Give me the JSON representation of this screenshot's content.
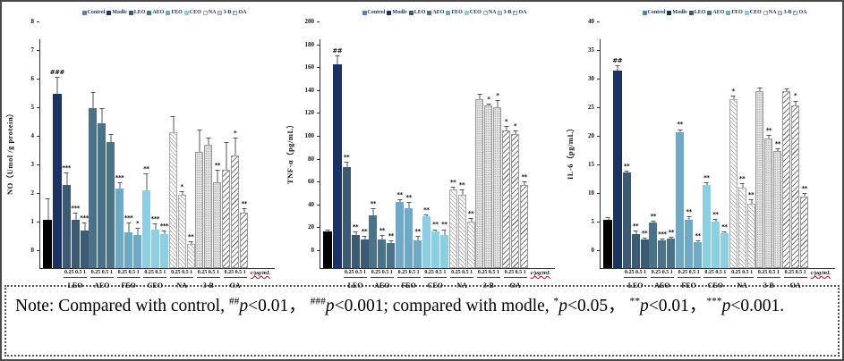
{
  "colors": {
    "Control": "#000000",
    "Modle": "#1b3264",
    "LEO": "#3c5a74",
    "AEO": "#4a7389",
    "FEO": "#6fa9c8",
    "CEO": "#8bd0e2",
    "NA": "pattern-na",
    "3-B": "pattern-dots",
    "OA": "pattern-oa",
    "control_legend_swatch": "#4f81bd",
    "legend_text": "#16305e",
    "axis": "#333333"
  },
  "chart_data": [
    {
      "type": "bar",
      "ylabel": "NO（Umol /g protein）",
      "xlabel": "c/μg/mL",
      "ylim": [
        0,
        8
      ],
      "ytick_step": 1,
      "legend": [
        "Control",
        "Modle",
        "LEO",
        "AEO",
        "FEO",
        "CEO",
        "NA",
        "3-B",
        "OA"
      ],
      "doses": [
        "0.25",
        "0.5",
        "1"
      ],
      "groups": [
        {
          "name": "Control",
          "single": true,
          "bars": [
            {
              "value": 1.7,
              "err": 0.75,
              "sig": ""
            }
          ]
        },
        {
          "name": "Modle",
          "single": true,
          "bars": [
            {
              "value": 6.1,
              "err": 0.6,
              "sig": "###"
            }
          ]
        },
        {
          "name": "LEO",
          "bars": [
            {
              "dose": "0.25",
              "value": 2.9,
              "err": 0.45,
              "sig": "***"
            },
            {
              "dose": "0.5",
              "value": 1.7,
              "err": 0.25,
              "sig": "***"
            },
            {
              "dose": "1",
              "value": 1.3,
              "err": 0.3,
              "sig": "***"
            }
          ]
        },
        {
          "name": "AEO",
          "bars": [
            {
              "dose": "0.25",
              "value": 5.6,
              "err": 0.55,
              "sig": ""
            },
            {
              "dose": "0.5",
              "value": 5.05,
              "err": 0.55,
              "sig": ""
            },
            {
              "dose": "1",
              "value": 4.4,
              "err": 0.3,
              "sig": ""
            }
          ]
        },
        {
          "name": "FEO",
          "bars": [
            {
              "dose": "0.25",
              "value": 2.78,
              "err": 0.22,
              "sig": "***"
            },
            {
              "dose": "0.5",
              "value": 1.25,
              "err": 0.35,
              "sig": "***"
            },
            {
              "dose": "1",
              "value": 1.15,
              "err": 0.25,
              "sig": "*"
            }
          ]
        },
        {
          "name": "CEO",
          "bars": [
            {
              "dose": "0.25",
              "value": 2.72,
              "err": 0.6,
              "sig": "**"
            },
            {
              "dose": "0.5",
              "value": 1.35,
              "err": 0.2,
              "sig": "***"
            },
            {
              "dose": "1",
              "value": 1.2,
              "err": 0.12,
              "sig": "***"
            }
          ]
        },
        {
          "name": "NA",
          "bars": [
            {
              "dose": "0.25",
              "value": 4.75,
              "err": 0.55,
              "sig": ""
            },
            {
              "dose": "0.5",
              "value": 2.55,
              "err": 0.15,
              "sig": "*"
            },
            {
              "dose": "1",
              "value": 0.85,
              "err": 0.1,
              "sig": "**"
            }
          ]
        },
        {
          "name": "3-B",
          "bars": [
            {
              "dose": "0.25",
              "value": 4.05,
              "err": 0.8,
              "sig": ""
            },
            {
              "dose": "0.5",
              "value": 4.3,
              "err": 0.25,
              "sig": ""
            },
            {
              "dose": "1",
              "value": 3.0,
              "err": 0.45,
              "sig": "**"
            }
          ]
        },
        {
          "name": "OA",
          "bars": [
            {
              "dose": "0.25",
              "value": 3.45,
              "err": 0.95,
              "sig": ""
            },
            {
              "dose": "0.5",
              "value": 3.95,
              "err": 0.6,
              "sig": "*"
            },
            {
              "dose": "1",
              "value": 1.95,
              "err": 0.15,
              "sig": "**"
            }
          ]
        }
      ]
    },
    {
      "type": "bar",
      "ylabel": "TNF-α（pg/mL）",
      "xlabel": "c/μg/mL",
      "ylim": [
        0,
        200
      ],
      "ytick_step": 20,
      "legend": [
        "Control",
        "Modle",
        "LEO",
        "AEO",
        "FEO",
        "CEO",
        "NA",
        "3-B",
        "OA"
      ],
      "doses": [
        "0.25",
        "0.5",
        "1"
      ],
      "groups": [
        {
          "name": "Control",
          "single": true,
          "bars": [
            {
              "value": 32,
              "err": 2,
              "sig": ""
            }
          ]
        },
        {
          "name": "Modle",
          "single": true,
          "bars": [
            {
              "value": 178,
              "err": 8,
              "sig": "##"
            }
          ]
        },
        {
          "name": "LEO",
          "bars": [
            {
              "dose": "0.25",
              "value": 88,
              "err": 5,
              "sig": "**"
            },
            {
              "dose": "0.5",
              "value": 29,
              "err": 3,
              "sig": "**"
            },
            {
              "dose": "1",
              "value": 25,
              "err": 3,
              "sig": "**"
            }
          ]
        },
        {
          "name": "AEO",
          "bars": [
            {
              "dose": "0.25",
              "value": 46,
              "err": 6,
              "sig": "**"
            },
            {
              "dose": "0.5",
              "value": 25,
              "err": 4,
              "sig": "**"
            },
            {
              "dose": "1",
              "value": 22,
              "err": 2,
              "sig": "**"
            }
          ]
        },
        {
          "name": "FEO",
          "bars": [
            {
              "dose": "0.25",
              "value": 58,
              "err": 2,
              "sig": "**"
            },
            {
              "dose": "0.5",
              "value": 52,
              "err": 6,
              "sig": "**"
            },
            {
              "dose": "1",
              "value": 24,
              "err": 4,
              "sig": "**"
            }
          ]
        },
        {
          "name": "CEO",
          "bars": [
            {
              "dose": "0.25",
              "value": 45,
              "err": 2,
              "sig": "**"
            },
            {
              "dose": "0.5",
              "value": 32,
              "err": 2,
              "sig": "**"
            },
            {
              "dose": "1",
              "value": 29,
              "err": 5,
              "sig": "**"
            }
          ]
        },
        {
          "name": "NA",
          "bars": [
            {
              "dose": "0.25",
              "value": 69,
              "err": 2,
              "sig": "**"
            },
            {
              "dose": "0.5",
              "value": 64,
              "err": 5,
              "sig": "**"
            },
            {
              "dose": "1",
              "value": 41,
              "err": 3,
              "sig": "**"
            }
          ]
        },
        {
          "name": "3-B",
          "bars": [
            {
              "dose": "0.25",
              "value": 148,
              "err": 4,
              "sig": ""
            },
            {
              "dose": "0.5",
              "value": 142,
              "err": 2,
              "sig": "*"
            },
            {
              "dose": "1",
              "value": 141,
              "err": 6,
              "sig": "*"
            }
          ]
        },
        {
          "name": "OA",
          "bars": [
            {
              "dose": "0.25",
              "value": 120,
              "err": 4,
              "sig": "*"
            },
            {
              "dose": "0.5",
              "value": 117,
              "err": 3,
              "sig": "*"
            },
            {
              "dose": "1",
              "value": 73,
              "err": 3,
              "sig": "**"
            }
          ]
        }
      ]
    },
    {
      "type": "bar",
      "ylabel": "IL-6（pg/mL）",
      "xlabel": "c/μg/mL",
      "ylim": [
        0,
        40
      ],
      "ytick_step": 5,
      "legend": [
        "Control",
        "Modle",
        "LEO",
        "AEO",
        "FEO",
        "CEO",
        "NA",
        "3-B",
        "OA"
      ],
      "doses": [
        "0.25",
        "0.5",
        "1"
      ],
      "groups": [
        {
          "name": "Control",
          "single": true,
          "bars": [
            {
              "value": 8.5,
              "err": 0.4,
              "sig": ""
            }
          ]
        },
        {
          "name": "Modle",
          "single": true,
          "bars": [
            {
              "value": 34.5,
              "err": 1,
              "sig": "##"
            }
          ]
        },
        {
          "name": "LEO",
          "bars": [
            {
              "dose": "0.25",
              "value": 16.7,
              "err": 0.4,
              "sig": "**"
            },
            {
              "dose": "0.5",
              "value": 6.0,
              "err": 0.5,
              "sig": "**"
            },
            {
              "dose": "1",
              "value": 5.0,
              "err": 0.3,
              "sig": "**"
            }
          ]
        },
        {
          "name": "AEO",
          "bars": [
            {
              "dose": "0.25",
              "value": 8.0,
              "err": 0.3,
              "sig": "**"
            },
            {
              "dose": "0.5",
              "value": 4.9,
              "err": 0.3,
              "sig": "***"
            },
            {
              "dose": "1",
              "value": 5.1,
              "err": 0.4,
              "sig": "**"
            }
          ]
        },
        {
          "name": "FEO",
          "bars": [
            {
              "dose": "0.25",
              "value": 23.8,
              "err": 0.5,
              "sig": "**"
            },
            {
              "dose": "0.5",
              "value": 8.5,
              "err": 0.5,
              "sig": "**"
            },
            {
              "dose": "1",
              "value": 4.5,
              "err": 0.4,
              "sig": "**"
            }
          ]
        },
        {
          "name": "CEO",
          "bars": [
            {
              "dose": "0.25",
              "value": 14.5,
              "err": 0.5,
              "sig": "**"
            },
            {
              "dose": "0.5",
              "value": 8.2,
              "err": 0.4,
              "sig": "**"
            },
            {
              "dose": "1",
              "value": 6.1,
              "err": 0.3,
              "sig": "**"
            }
          ]
        },
        {
          "name": "NA",
          "bars": [
            {
              "dose": "0.25",
              "value": 29.5,
              "err": 0.6,
              "sig": "*"
            },
            {
              "dose": "0.5",
              "value": 14.0,
              "err": 0.8,
              "sig": "**"
            },
            {
              "dose": "1",
              "value": 11.3,
              "err": 0.7,
              "sig": "**"
            }
          ]
        },
        {
          "name": "3-B",
          "bars": [
            {
              "dose": "0.25",
              "value": 31.0,
              "err": 0.5,
              "sig": ""
            },
            {
              "dose": "0.5",
              "value": 22.7,
              "err": 0.6,
              "sig": "**"
            },
            {
              "dose": "1",
              "value": 20.4,
              "err": 0.5,
              "sig": "**"
            }
          ]
        },
        {
          "name": "OA",
          "bars": [
            {
              "dose": "0.25",
              "value": 31.0,
              "err": 0.4,
              "sig": ""
            },
            {
              "dose": "0.5",
              "value": 28.5,
              "err": 0.8,
              "sig": "*"
            },
            {
              "dose": "1",
              "value": 12.5,
              "err": 0.6,
              "sig": "**"
            }
          ]
        }
      ]
    }
  ],
  "note": {
    "parts": [
      {
        "t": "Note: Compared with control, "
      },
      {
        "sup": "##"
      },
      {
        "i": "p"
      },
      {
        "t": "<0.01， "
      },
      {
        "sup": "###"
      },
      {
        "i": "p"
      },
      {
        "t": "<0.001; compared with modle, "
      },
      {
        "sup": "*"
      },
      {
        "i": "p"
      },
      {
        "t": "<0.05， "
      },
      {
        "sup": "**"
      },
      {
        "i": "p"
      },
      {
        "t": "<0.01，"
      },
      {
        "sup": "***"
      },
      {
        "i": "p"
      },
      {
        "t": "<0.001."
      }
    ]
  }
}
